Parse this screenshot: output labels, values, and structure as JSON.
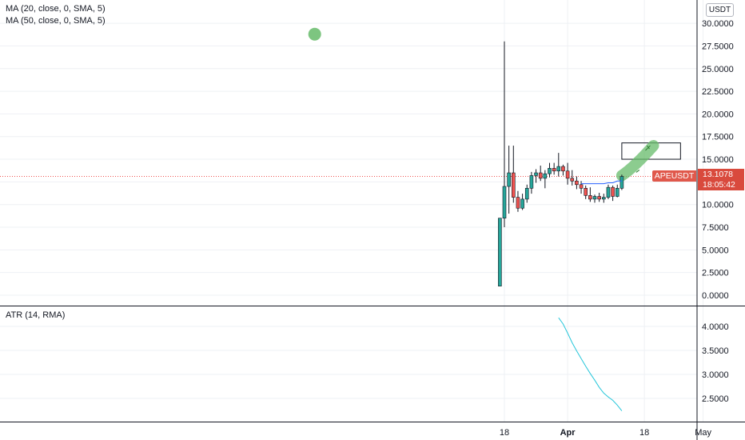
{
  "indicators": {
    "ma20_label": "MA (20, close, 0, SMA, 5)",
    "ma50_label": "MA (50, close, 0, SMA, 5)",
    "atr_label": "ATR (14, RMA)"
  },
  "price_scale": {
    "currency": "USDT",
    "symbol_tag": "APEUSDT",
    "last_price": "13.1078",
    "countdown": "18:05:42"
  },
  "colors": {
    "up": "#26a69a",
    "down": "#ef5350",
    "ma20": "#2962ff",
    "atr_line": "#26c6da",
    "last_price_line": "#ef5350",
    "price_tag": "#d94a3d",
    "annotation_green": "#66bb6a"
  },
  "chart_data": [
    {
      "type": "candlestick",
      "y_axis_ticks": [
        "0.0000",
        "2.5000",
        "5.0000",
        "7.5000",
        "10.0000",
        "12.5000",
        "15.0000",
        "17.5000",
        "20.0000",
        "22.5000",
        "25.0000",
        "27.5000",
        "30.0000"
      ],
      "ylim": [
        0,
        30
      ],
      "x_ticks": [
        "18",
        "Apr",
        "18",
        "May"
      ],
      "grid": true,
      "last_price": 13.1078,
      "candles": [
        {
          "date": "2022-03-17",
          "open": 1.0,
          "high": 8.5,
          "low": 1.0,
          "close": 8.5
        },
        {
          "date": "2022-03-18",
          "open": 8.5,
          "high": 28.0,
          "low": 7.5,
          "close": 12.0
        },
        {
          "date": "2022-03-19",
          "open": 12.0,
          "high": 16.5,
          "low": 9.0,
          "close": 13.5
        },
        {
          "date": "2022-03-20",
          "open": 13.5,
          "high": 16.5,
          "low": 10.2,
          "close": 10.8
        },
        {
          "date": "2022-03-21",
          "open": 10.8,
          "high": 11.5,
          "low": 9.2,
          "close": 9.6
        },
        {
          "date": "2022-03-22",
          "open": 9.6,
          "high": 11.2,
          "low": 9.4,
          "close": 10.6
        },
        {
          "date": "2022-03-23",
          "open": 10.6,
          "high": 12.2,
          "low": 10.2,
          "close": 11.8
        },
        {
          "date": "2022-03-24",
          "open": 11.8,
          "high": 13.6,
          "low": 11.2,
          "close": 13.2
        },
        {
          "date": "2022-03-25",
          "open": 13.2,
          "high": 13.9,
          "low": 12.4,
          "close": 13.5
        },
        {
          "date": "2022-03-26",
          "open": 13.5,
          "high": 14.3,
          "low": 12.6,
          "close": 12.9
        },
        {
          "date": "2022-03-27",
          "open": 12.9,
          "high": 13.8,
          "low": 11.8,
          "close": 13.4
        },
        {
          "date": "2022-03-28",
          "open": 13.4,
          "high": 14.6,
          "low": 13.0,
          "close": 14.0
        },
        {
          "date": "2022-03-29",
          "open": 14.0,
          "high": 14.6,
          "low": 13.3,
          "close": 13.7
        },
        {
          "date": "2022-03-30",
          "open": 13.7,
          "high": 15.7,
          "low": 13.1,
          "close": 14.2
        },
        {
          "date": "2022-03-31",
          "open": 14.2,
          "high": 14.4,
          "low": 13.2,
          "close": 13.7
        },
        {
          "date": "2022-04-01",
          "open": 13.7,
          "high": 14.6,
          "low": 12.2,
          "close": 12.9
        },
        {
          "date": "2022-04-02",
          "open": 12.9,
          "high": 13.8,
          "low": 12.1,
          "close": 12.6
        },
        {
          "date": "2022-04-03",
          "open": 12.6,
          "high": 13.1,
          "low": 11.7,
          "close": 12.2
        },
        {
          "date": "2022-04-04",
          "open": 12.2,
          "high": 12.6,
          "low": 11.2,
          "close": 11.8
        },
        {
          "date": "2022-04-05",
          "open": 11.8,
          "high": 12.1,
          "low": 10.6,
          "close": 11.0
        },
        {
          "date": "2022-04-06",
          "open": 11.0,
          "high": 11.9,
          "low": 10.3,
          "close": 10.6
        },
        {
          "date": "2022-04-07",
          "open": 10.6,
          "high": 11.1,
          "low": 10.2,
          "close": 10.9
        },
        {
          "date": "2022-04-08",
          "open": 10.9,
          "high": 11.3,
          "low": 10.3,
          "close": 10.6
        },
        {
          "date": "2022-04-09",
          "open": 10.6,
          "high": 11.2,
          "low": 10.2,
          "close": 10.8
        },
        {
          "date": "2022-04-10",
          "open": 10.8,
          "high": 12.2,
          "low": 10.6,
          "close": 11.9
        },
        {
          "date": "2022-04-11",
          "open": 11.9,
          "high": 12.1,
          "low": 10.4,
          "close": 10.9
        },
        {
          "date": "2022-04-12",
          "open": 10.9,
          "high": 12.2,
          "low": 10.8,
          "close": 11.8
        },
        {
          "date": "2022-04-13",
          "open": 11.8,
          "high": 13.3,
          "low": 11.6,
          "close": 13.1
        }
      ],
      "ma20": [
        {
          "date": "2022-04-04",
          "value": 12.3
        },
        {
          "date": "2022-04-05",
          "value": 12.3
        },
        {
          "date": "2022-04-06",
          "value": 12.3
        },
        {
          "date": "2022-04-07",
          "value": 12.3
        },
        {
          "date": "2022-04-08",
          "value": 12.3
        },
        {
          "date": "2022-04-09",
          "value": 12.3
        },
        {
          "date": "2022-04-10",
          "value": 12.4
        },
        {
          "date": "2022-04-11",
          "value": 12.4
        },
        {
          "date": "2022-04-12",
          "value": 12.6
        },
        {
          "date": "2022-04-13",
          "value": 12.6
        }
      ],
      "annotations": {
        "target_box": {
          "start": "2022-04-13",
          "end": "2022-04-26",
          "low": 15.0,
          "high": 16.8
        },
        "brush_stroke": {
          "from_date": "2022-04-13",
          "from_value": 13.2,
          "to_date": "2022-04-20",
          "to_value": 16.5
        },
        "dot": {
          "date": "2022-02-04",
          "value": 28.8
        }
      }
    },
    {
      "type": "line",
      "name": "ATR (14, RMA)",
      "y_axis_ticks": [
        "2.5000",
        "3.0000",
        "3.5000",
        "4.0000"
      ],
      "ylim": [
        2.1,
        4.35
      ],
      "grid": true,
      "points": [
        {
          "date": "2022-03-30",
          "value": 4.18
        },
        {
          "date": "2022-03-31",
          "value": 4.05
        },
        {
          "date": "2022-04-01",
          "value": 3.86
        },
        {
          "date": "2022-04-02",
          "value": 3.66
        },
        {
          "date": "2022-04-03",
          "value": 3.49
        },
        {
          "date": "2022-04-04",
          "value": 3.33
        },
        {
          "date": "2022-04-05",
          "value": 3.17
        },
        {
          "date": "2022-04-06",
          "value": 3.02
        },
        {
          "date": "2022-04-07",
          "value": 2.88
        },
        {
          "date": "2022-04-08",
          "value": 2.73
        },
        {
          "date": "2022-04-09",
          "value": 2.61
        },
        {
          "date": "2022-04-10",
          "value": 2.53
        },
        {
          "date": "2022-04-11",
          "value": 2.46
        },
        {
          "date": "2022-04-12",
          "value": 2.36
        },
        {
          "date": "2022-04-13",
          "value": 2.24
        }
      ]
    }
  ]
}
